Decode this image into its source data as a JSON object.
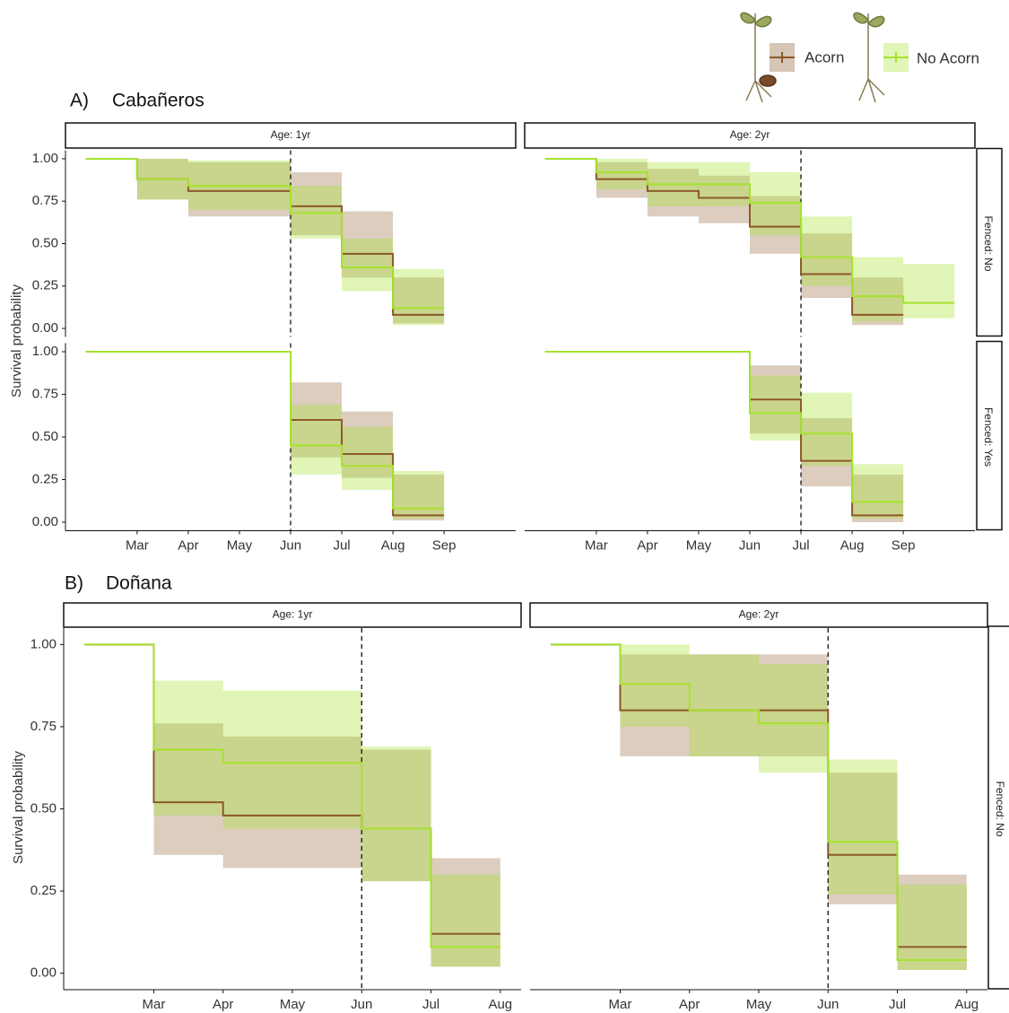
{
  "legend": [
    {
      "name": "Acorn",
      "color": "#8b5a2b"
    },
    {
      "name": "No Acorn",
      "color": "#a6e22e"
    }
  ],
  "sections": [
    {
      "label": "A)",
      "title": "Cabañeros",
      "y_label": "Survival probability"
    },
    {
      "label": "B)",
      "title": "Doñana",
      "y_label": "Survival probability"
    }
  ],
  "chart_data": [
    {
      "type": "step",
      "facet_col": "Age: 1yr",
      "xlim": [
        1.6,
        10.4
      ],
      "ylim": [
        -0.05,
        1.05
      ],
      "yticks": [
        {
          "value": 0,
          "label": "0.00"
        },
        {
          "value": 0.25,
          "label": "0.25"
        },
        {
          "value": 0.5,
          "label": "0.50"
        },
        {
          "value": 0.75,
          "label": "0.75"
        },
        {
          "value": 1,
          "label": "1.00"
        }
      ],
      "vline": 6,
      "series": [
        {
          "x": [
            2,
            3,
            4,
            6,
            7,
            8,
            9
          ],
          "values": [
            1,
            0.88,
            0.81,
            0.72,
            0.44,
            0.08,
            0.08
          ],
          "lower": [
            null,
            0.76,
            0.66,
            0.55,
            0.3,
            0.03,
            null
          ],
          "upper": [
            null,
            1,
            0.98,
            0.92,
            0.69,
            0.3,
            null
          ]
        },
        {
          "x": [
            2,
            3,
            4,
            6,
            7,
            8,
            9
          ],
          "values": [
            1,
            0.88,
            0.84,
            0.68,
            0.36,
            0.12,
            0.12
          ],
          "lower": [
            null,
            0.76,
            0.7,
            0.53,
            0.22,
            0.02,
            null
          ],
          "upper": [
            null,
            1,
            0.99,
            0.84,
            0.53,
            0.35,
            null
          ]
        }
      ]
    },
    {
      "type": "step",
      "xlim": [
        1.6,
        10.4
      ],
      "ylim": [
        -0.05,
        1.05
      ],
      "xticks": [
        {
          "value": 3,
          "label": "Mar"
        },
        {
          "value": 4,
          "label": "Apr"
        },
        {
          "value": 5,
          "label": "May"
        },
        {
          "value": 6,
          "label": "Jun"
        },
        {
          "value": 7,
          "label": "Jul"
        },
        {
          "value": 8,
          "label": "Aug"
        },
        {
          "value": 9,
          "label": "Sep"
        }
      ],
      "yticks": [
        {
          "value": 0,
          "label": "0.00"
        },
        {
          "value": 0.25,
          "label": "0.25"
        },
        {
          "value": 0.5,
          "label": "0.50"
        },
        {
          "value": 0.75,
          "label": "0.75"
        },
        {
          "value": 1,
          "label": "1.00"
        }
      ],
      "vline": 6,
      "series": [
        {
          "x": [
            2,
            6,
            7,
            8,
            9
          ],
          "values": [
            1,
            0.6,
            0.4,
            0.04,
            0.04
          ],
          "lower": [
            null,
            0.38,
            0.26,
            0.01,
            null
          ],
          "upper": [
            null,
            0.82,
            0.65,
            0.28,
            null
          ]
        },
        {
          "x": [
            2,
            6,
            7,
            8,
            9
          ],
          "values": [
            1,
            0.45,
            0.33,
            0.08,
            0.08
          ],
          "lower": [
            null,
            0.28,
            0.19,
            0.02,
            null
          ],
          "upper": [
            null,
            0.69,
            0.56,
            0.3,
            null
          ]
        }
      ]
    },
    {
      "type": "step",
      "facet_col": "Age: 2yr",
      "facet_row": "Fenced: No",
      "xlim": [
        1.6,
        10.4
      ],
      "ylim": [
        -0.05,
        1.05
      ],
      "vline": 7,
      "series": [
        {
          "x": [
            2,
            3,
            4,
            5,
            6,
            7,
            8,
            9
          ],
          "values": [
            1,
            0.88,
            0.81,
            0.77,
            0.6,
            0.32,
            0.08,
            0.08
          ],
          "lower": [
            null,
            0.77,
            0.66,
            0.62,
            0.44,
            0.18,
            0.02,
            null
          ],
          "upper": [
            null,
            0.98,
            0.94,
            0.9,
            0.78,
            0.56,
            0.3,
            null
          ]
        },
        {
          "x": [
            2,
            3,
            4,
            5,
            6,
            7,
            8,
            9,
            10
          ],
          "values": [
            1,
            0.92,
            0.85,
            0.85,
            0.74,
            0.42,
            0.19,
            0.15,
            0.15
          ],
          "lower": [
            null,
            0.82,
            0.72,
            0.72,
            0.55,
            0.25,
            0.04,
            0.06,
            null
          ],
          "upper": [
            null,
            1,
            0.98,
            0.98,
            0.92,
            0.66,
            0.42,
            0.38,
            null
          ]
        }
      ]
    },
    {
      "type": "step",
      "facet_row": "Fenced: Yes",
      "xlim": [
        1.6,
        10.4
      ],
      "ylim": [
        -0.05,
        1.05
      ],
      "xticks": [
        {
          "value": 3,
          "label": "Mar"
        },
        {
          "value": 4,
          "label": "Apr"
        },
        {
          "value": 5,
          "label": "May"
        },
        {
          "value": 6,
          "label": "Jun"
        },
        {
          "value": 7,
          "label": "Jul"
        },
        {
          "value": 8,
          "label": "Aug"
        },
        {
          "value": 9,
          "label": "Sep"
        }
      ],
      "vline": 7,
      "series": [
        {
          "x": [
            2,
            6,
            7,
            8,
            9
          ],
          "values": [
            1,
            0.72,
            0.36,
            0.04,
            0.04
          ],
          "lower": [
            null,
            0.52,
            0.21,
            0,
            null
          ],
          "upper": [
            null,
            0.92,
            0.61,
            0.28,
            null
          ]
        },
        {
          "x": [
            2,
            6,
            7,
            8,
            9
          ],
          "values": [
            1,
            0.64,
            0.52,
            0.12,
            0.12
          ],
          "lower": [
            null,
            0.48,
            0.33,
            0.02,
            null
          ],
          "upper": [
            null,
            0.86,
            0.76,
            0.34,
            null
          ]
        }
      ]
    },
    {
      "type": "step",
      "facet_col": "Age: 1yr",
      "xlim": [
        1.7,
        8.3
      ],
      "ylim": [
        -0.05,
        1.05
      ],
      "xticks": [
        {
          "value": 3,
          "label": "Mar"
        },
        {
          "value": 4,
          "label": "Apr"
        },
        {
          "value": 5,
          "label": "May"
        },
        {
          "value": 6,
          "label": "Jun"
        },
        {
          "value": 7,
          "label": "Jul"
        },
        {
          "value": 8,
          "label": "Aug"
        }
      ],
      "yticks": [
        {
          "value": 0,
          "label": "0.00"
        },
        {
          "value": 0.25,
          "label": "0.25"
        },
        {
          "value": 0.5,
          "label": "0.50"
        },
        {
          "value": 0.75,
          "label": "0.75"
        },
        {
          "value": 1,
          "label": "1.00"
        }
      ],
      "vline": 6,
      "series": [
        {
          "x": [
            2,
            3,
            4,
            6,
            7,
            8
          ],
          "values": [
            1,
            0.52,
            0.48,
            0.44,
            0.12,
            0.12
          ],
          "lower": [
            null,
            0.36,
            0.32,
            0.28,
            0.02,
            null
          ],
          "upper": [
            null,
            0.76,
            0.72,
            0.68,
            0.35,
            null
          ]
        },
        {
          "x": [
            2,
            3,
            4,
            6,
            7,
            8
          ],
          "values": [
            1,
            0.68,
            0.64,
            0.44,
            0.08,
            0.08
          ],
          "lower": [
            null,
            0.48,
            0.44,
            0.28,
            0.02,
            null
          ],
          "upper": [
            null,
            0.89,
            0.86,
            0.69,
            0.3,
            null
          ]
        }
      ]
    },
    {
      "type": "step",
      "facet_col": "Age: 2yr",
      "facet_row": "Fenced: No",
      "xlim": [
        1.7,
        8.3
      ],
      "ylim": [
        -0.05,
        1.05
      ],
      "xticks": [
        {
          "value": 3,
          "label": "Mar"
        },
        {
          "value": 4,
          "label": "Apr"
        },
        {
          "value": 5,
          "label": "May"
        },
        {
          "value": 6,
          "label": "Jun"
        },
        {
          "value": 7,
          "label": "Jul"
        },
        {
          "value": 8,
          "label": "Aug"
        }
      ],
      "vline": 6,
      "series": [
        {
          "x": [
            2,
            3,
            6,
            7,
            8
          ],
          "values": [
            1,
            0.8,
            0.36,
            0.08,
            0.08
          ],
          "lower": [
            null,
            0.66,
            0.21,
            0.01,
            null
          ],
          "upper": [
            null,
            0.97,
            0.61,
            0.3,
            null
          ]
        },
        {
          "x": [
            2,
            3,
            4,
            5,
            6,
            7,
            8
          ],
          "values": [
            1,
            0.88,
            0.8,
            0.76,
            0.4,
            0.04,
            0.04
          ],
          "lower": [
            null,
            0.75,
            0.66,
            0.61,
            0.24,
            0.01,
            null
          ],
          "upper": [
            null,
            1,
            0.97,
            0.94,
            0.65,
            0.27,
            null
          ]
        }
      ]
    }
  ]
}
